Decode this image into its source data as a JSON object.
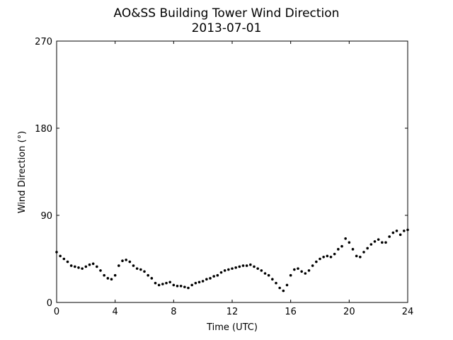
{
  "chart_data": {
    "type": "scatter",
    "title": "AO&SS Building Tower Wind Direction",
    "subtitle": "2013-07-01",
    "x_label": "Time (UTC)",
    "y_label": "Wind Direction (°)",
    "color": "#000000",
    "xlim": [
      0,
      24
    ],
    "xticks": [
      0,
      4,
      8,
      12,
      16,
      20,
      24
    ],
    "ylim": [
      0,
      270
    ],
    "yticks": [
      0,
      90,
      180,
      270
    ],
    "x": [
      0,
      0.25,
      0.5,
      0.75,
      1,
      1.25,
      1.5,
      1.75,
      2,
      2.25,
      2.5,
      2.75,
      3,
      3.25,
      3.5,
      3.75,
      4,
      4.25,
      4.5,
      4.75,
      5,
      5.25,
      5.5,
      5.75,
      6,
      6.25,
      6.5,
      6.75,
      7,
      7.25,
      7.5,
      7.75,
      8,
      8.25,
      8.5,
      8.75,
      9,
      9.25,
      9.5,
      9.75,
      10,
      10.25,
      10.5,
      10.75,
      11,
      11.25,
      11.5,
      11.75,
      12,
      12.25,
      12.5,
      12.75,
      13,
      13.25,
      13.5,
      13.75,
      14,
      14.25,
      14.5,
      14.75,
      15,
      15.25,
      15.5,
      15.75,
      16,
      16.25,
      16.5,
      16.75,
      17,
      17.25,
      17.5,
      17.75,
      18,
      18.25,
      18.5,
      18.75,
      19,
      19.25,
      19.5,
      19.75,
      20,
      20.25,
      20.5,
      20.75,
      21,
      21.25,
      21.5,
      21.75,
      22,
      22.25,
      22.5,
      22.75,
      23,
      23.25,
      23.5,
      23.75,
      24
    ],
    "values": [
      52,
      48,
      45,
      42,
      38,
      37,
      36,
      35,
      37,
      39,
      40,
      37,
      33,
      28,
      25,
      24,
      28,
      38,
      43,
      44,
      42,
      38,
      35,
      34,
      32,
      28,
      25,
      20,
      18,
      19,
      20,
      21,
      18,
      17,
      17,
      16,
      15,
      18,
      20,
      21,
      22,
      24,
      25,
      27,
      28,
      31,
      33,
      34,
      35,
      36,
      37,
      38,
      38,
      39,
      37,
      35,
      33,
      30,
      28,
      24,
      20,
      15,
      12,
      18,
      28,
      34,
      35,
      32,
      30,
      33,
      38,
      42,
      45,
      47,
      48,
      47,
      50,
      55,
      58,
      66,
      62,
      55,
      48,
      47,
      52,
      56,
      60,
      63,
      65,
      62,
      62,
      68,
      72,
      74,
      70,
      74,
      75
    ]
  }
}
